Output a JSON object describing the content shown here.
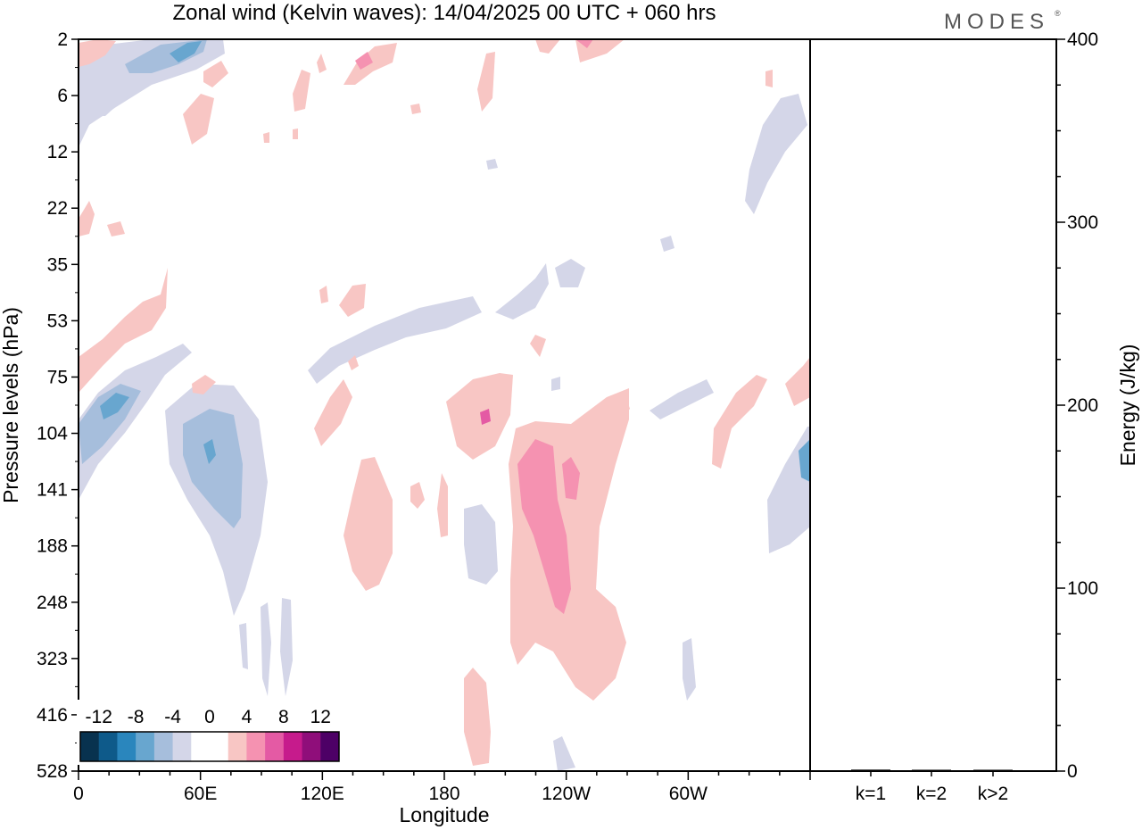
{
  "header": {
    "title": "Zonal wind (Kelvin waves):  14/04/2025  00 UTC  + 060 hrs",
    "brand": "MODES",
    "brand_mark": "®"
  },
  "chart_data": [
    {
      "type": "heatmap",
      "title": "Zonal wind (Kelvin waves):  14/04/2025  00 UTC  + 060 hrs",
      "xlabel": "Longitude",
      "ylabel": "Pressure levels (hPa)",
      "x_ticks": [
        "0",
        "60E",
        "120E",
        "180",
        "120W",
        "60W"
      ],
      "x_tick_degrees": [
        0,
        60,
        120,
        180,
        240,
        300
      ],
      "xlim": [
        0,
        360
      ],
      "y_ticks": [
        "2",
        "6",
        "12",
        "22",
        "35",
        "53",
        "75",
        "104",
        "141",
        "188",
        "248",
        "323",
        "416",
        "528"
      ],
      "y_scale": "log",
      "colorbar": {
        "labels": [
          "-12",
          "-8",
          "-4",
          "0",
          "4",
          "8",
          "12"
        ],
        "colors": [
          "#08324f",
          "#0e5a8a",
          "#2a86bd",
          "#68a6cf",
          "#a6bedc",
          "#d4d6e8",
          "#ffffff",
          "#ffffff",
          "#f8c6c4",
          "#f592b1",
          "#e45aa4",
          "#c61b8c",
          "#8f0e7a",
          "#4d0066"
        ]
      },
      "contours": [
        {
          "sign": "positive",
          "level": 4,
          "lon_range": [
            160,
            198
          ],
          "p_range": [
            70,
            115
          ]
        },
        {
          "sign": "positive",
          "level": 4,
          "lon_range": [
            212,
            270
          ],
          "p_range": [
            98,
            330
          ]
        },
        {
          "sign": "positive",
          "level": 8,
          "lon_range": [
            217,
            240
          ],
          "p_range": [
            110,
            250
          ]
        },
        {
          "sign": "negative",
          "level": -4,
          "lon_range": [
            42,
            95
          ],
          "p_range": [
            104,
            250
          ]
        },
        {
          "sign": "negative",
          "level": -8,
          "lon_range": [
            52,
            80
          ],
          "p_range": [
            115,
            160
          ]
        },
        {
          "sign": "negative",
          "level": -8,
          "lon_range": [
            0,
            25
          ],
          "p_range": [
            78,
            120
          ]
        },
        {
          "sign": "negative",
          "level": -8,
          "lon_range": [
            22,
            65
          ],
          "p_range": [
            2,
            4
          ]
        }
      ]
    },
    {
      "type": "bar",
      "categories": [
        "k=1",
        "k=2",
        "k>2"
      ],
      "values": [
        0.8,
        0.2,
        0.5
      ],
      "ylabel": "Energy (J/kg)",
      "ylim": [
        0,
        400
      ],
      "y_ticks": [
        0,
        100,
        200,
        300,
        400
      ]
    }
  ]
}
